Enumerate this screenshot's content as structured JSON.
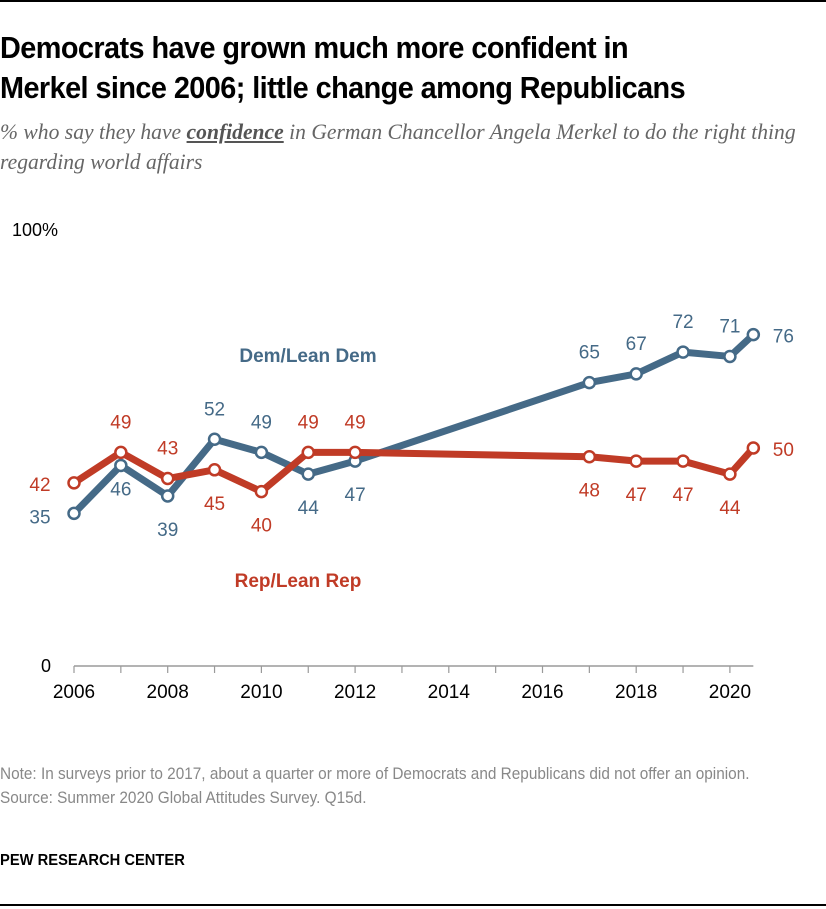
{
  "header": {
    "title_line1": "Democrats have grown much more confident in",
    "title_line2": "Merkel since 2006; little change among Republicans",
    "subtitle_pre": "% who say they have ",
    "subtitle_emph": "confidence",
    "subtitle_post": " in German Chancellor Angela Merkel to do the right thing regarding world affairs"
  },
  "footer": {
    "note": "Note: In surveys prior to 2017, about a quarter or more of Democrats and Republicans did not offer an opinion.",
    "source": "Source: Summer 2020 Global Attitudes Survey. Q15d.",
    "brand": "PEW RESEARCH CENTER"
  },
  "chart_data": {
    "type": "line",
    "title": "Democrats have grown much more confident in Merkel since 2006; little change among Republicans",
    "xlabel": "",
    "ylabel": "",
    "x_ticks": [
      2006,
      2008,
      2010,
      2012,
      2014,
      2016,
      2018,
      2020
    ],
    "x_range": [
      2006,
      2020.5
    ],
    "ylim": [
      0,
      100
    ],
    "y_tick_labels": [
      "0",
      "100%"
    ],
    "grid": false,
    "series": [
      {
        "name": "Dem/Lean Dem",
        "color": "#456A87",
        "x": [
          2006,
          2007,
          2008,
          2009,
          2010,
          2011,
          2012,
          2017,
          2018,
          2019,
          2020,
          2020.5
        ],
        "values": [
          35,
          46,
          39,
          52,
          49,
          44,
          47,
          65,
          67,
          72,
          71,
          76
        ]
      },
      {
        "name": "Rep/Lean Rep",
        "color": "#C03B26",
        "x": [
          2006,
          2007,
          2008,
          2009,
          2010,
          2011,
          2012,
          2017,
          2018,
          2019,
          2020,
          2020.5
        ],
        "values": [
          42,
          49,
          43,
          45,
          40,
          49,
          49,
          48,
          47,
          47,
          44,
          50
        ]
      }
    ]
  }
}
